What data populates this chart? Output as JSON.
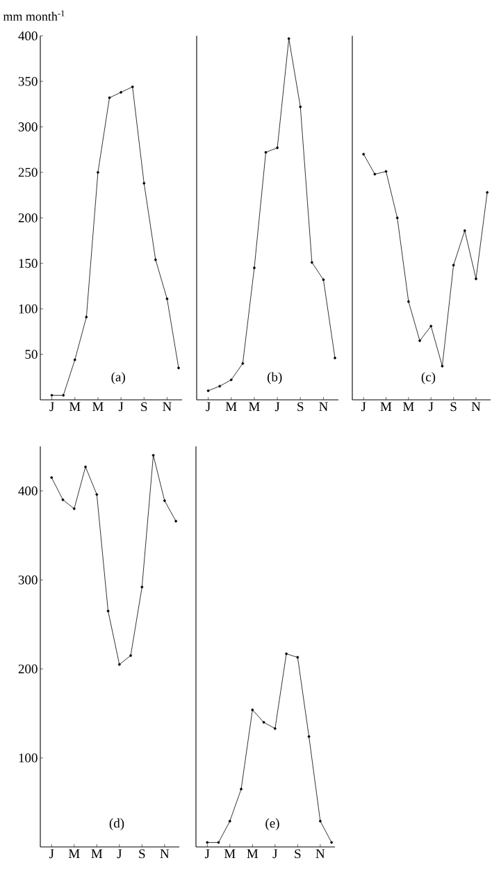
{
  "chart_data": [
    {
      "type": "line",
      "title": "(a)",
      "ylabel": "mm month$^{-1}$",
      "categories": [
        "J",
        null,
        "M",
        null,
        "M",
        null,
        "J",
        null,
        "S",
        null,
        "N",
        null
      ],
      "values": [
        5,
        5,
        44,
        91,
        250,
        332,
        338,
        344,
        238,
        154,
        111,
        35
      ],
      "color": "#000000",
      "ylim": [
        0,
        400
      ],
      "yticks": [
        50,
        100,
        150,
        200,
        250,
        300,
        350,
        400
      ],
      "marker": "circle"
    },
    {
      "type": "line",
      "title": "(b)",
      "categories": [
        "J",
        null,
        "M",
        null,
        "M",
        null,
        "J",
        null,
        "S",
        null,
        "N",
        null
      ],
      "values": [
        10,
        15,
        22,
        40,
        145,
        272,
        277,
        397,
        322,
        151,
        132,
        46
      ],
      "color": "#000000",
      "ylim": [
        0,
        400
      ],
      "marker": "circle",
      "tick_labels": "x"
    },
    {
      "type": "line",
      "title": "(c)",
      "categories": [
        "J",
        null,
        "M",
        null,
        "M",
        null,
        "J",
        null,
        "S",
        null,
        "N",
        null
      ],
      "values": [
        270,
        248,
        251,
        200,
        108,
        65,
        81,
        37,
        148,
        186,
        133,
        228
      ],
      "color": "#000000",
      "ylim": [
        0,
        400
      ],
      "marker": "circle",
      "tick_labels": "x"
    },
    {
      "type": "line",
      "title": "(d)",
      "categories": [
        "J",
        null,
        "M",
        null,
        "M",
        null,
        "J",
        null,
        "S",
        null,
        "N",
        null
      ],
      "values": [
        415,
        390,
        380,
        427,
        396,
        265,
        205,
        215,
        292,
        440,
        389,
        366
      ],
      "color": "#000000",
      "ylim": [
        0,
        450
      ],
      "yticks": [
        100,
        200,
        300,
        400
      ],
      "marker": "circle"
    },
    {
      "type": "line",
      "title": "(e)",
      "categories": [
        "J",
        null,
        "M",
        null,
        "M",
        null,
        "J",
        null,
        "S",
        null,
        "N",
        null
      ],
      "values": [
        5,
        5,
        29,
        65,
        154,
        140,
        133,
        217,
        213,
        124,
        29,
        5
      ],
      "color": "#000000",
      "ylim": [
        0,
        450
      ],
      "marker": "circle",
      "tick_labels": "x"
    }
  ]
}
